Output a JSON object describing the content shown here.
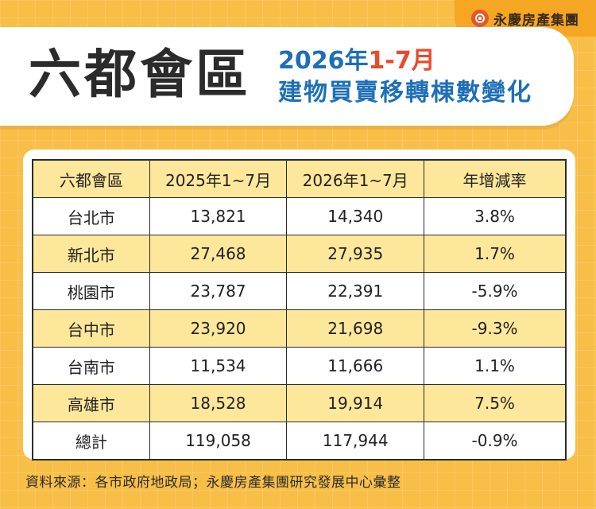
{
  "brand": {
    "name": "永慶房產集團"
  },
  "header": {
    "title": "六都會區",
    "subtitle_year": "2026年",
    "subtitle_range": "1-7月",
    "subtitle_line2": "建物買賣移轉棟數變化"
  },
  "table": {
    "columns": [
      "六都會區",
      "2025年1~7月",
      "2026年1~7月",
      "年增減率"
    ],
    "rows": [
      [
        "台北市",
        "13,821",
        "14,340",
        "3.8%"
      ],
      [
        "新北市",
        "27,468",
        "27,935",
        "1.7%"
      ],
      [
        "桃園市",
        "23,787",
        "22,391",
        "-5.9%"
      ],
      [
        "台中市",
        "23,920",
        "21,698",
        "-9.3%"
      ],
      [
        "台南市",
        "11,534",
        "11,666",
        "1.1%"
      ],
      [
        "高雄市",
        "18,528",
        "19,914",
        "7.5%"
      ],
      [
        "總計",
        "119,058",
        "117,944",
        "-0.9%"
      ]
    ]
  },
  "footer": {
    "source": "資料來源：各市政府地政局；永慶房產集團研究發展中心彙整"
  },
  "colors": {
    "background": "#f8bf48",
    "highlight_row": "#fde79b",
    "subtitle": "#1d6fb8",
    "accent": "#e84b2c"
  }
}
